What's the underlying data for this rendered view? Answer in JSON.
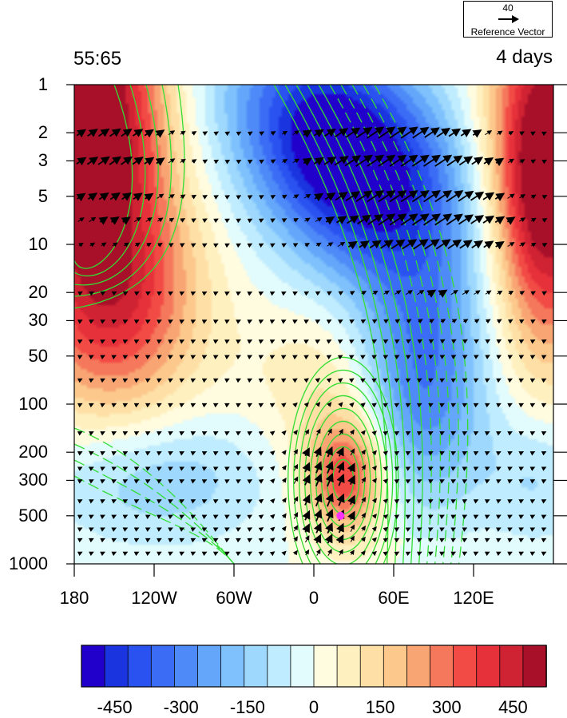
{
  "chart_data": {
    "type": "heatmap",
    "title_left": "55:65",
    "title_right": "4 days",
    "xlabel": "",
    "ylabel": "",
    "x_ticks": [
      "180",
      "120W",
      "60W",
      "0",
      "60E",
      "120E"
    ],
    "x_tick_values": [
      -180,
      -120,
      -60,
      0,
      60,
      120
    ],
    "xlim": [
      -180,
      180
    ],
    "y_ticks": [
      "1",
      "2",
      "3",
      "5",
      "10",
      "20",
      "30",
      "50",
      "100",
      "200",
      "300",
      "500",
      "1000"
    ],
    "y_tick_values": [
      1,
      2,
      3,
      5,
      10,
      20,
      30,
      50,
      100,
      200,
      300,
      500,
      1000
    ],
    "ylim": [
      1000,
      1
    ],
    "y_scale": "log",
    "colorbar": {
      "levels": [
        -525,
        -450,
        -375,
        -300,
        -225,
        -150,
        -75,
        0,
        75,
        150,
        225,
        300,
        375,
        450,
        525
      ],
      "tick_labels": [
        "-450",
        "-300",
        "-150",
        "0",
        "150",
        "300",
        "450"
      ],
      "tick_values": [
        -450,
        -300,
        -150,
        0,
        150,
        300,
        450
      ],
      "colors": [
        "#2200cc",
        "#1a35e0",
        "#2a52f0",
        "#3b6cf5",
        "#4e8af8",
        "#63a6fa",
        "#7ec1fc",
        "#9ed8fd",
        "#bfecfe",
        "#e2fbfc",
        "#fffce0",
        "#fff0c0",
        "#fee0a6",
        "#fcc88c",
        "#f8a473",
        "#f5785c",
        "#f24a45",
        "#e6303a",
        "#cf2232",
        "#a8102a"
      ]
    },
    "reference_vector": {
      "magnitude": "40",
      "label": "Reference Vector"
    },
    "marker": {
      "lon": 20,
      "pressure": 500,
      "color": "#ff33ff"
    },
    "contour_color": "#33dd33"
  }
}
